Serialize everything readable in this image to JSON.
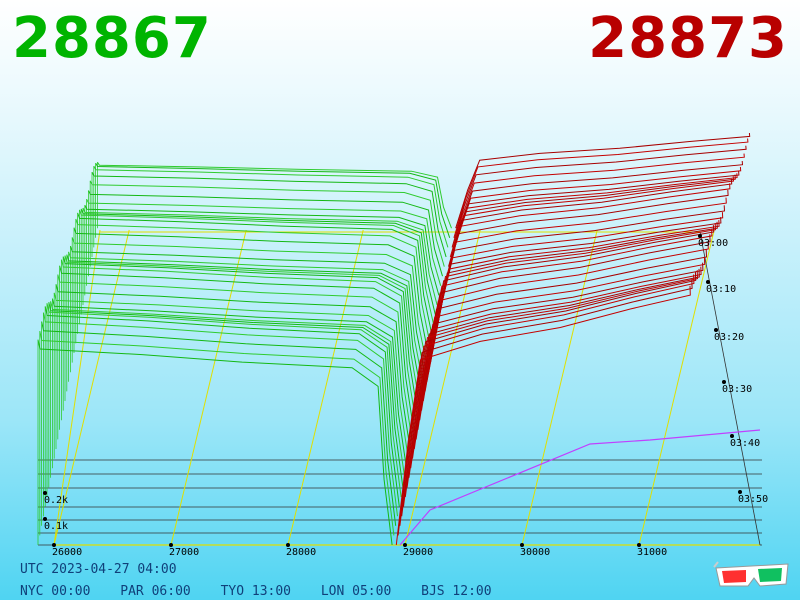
{
  "header": {
    "bid_price": "28867",
    "ask_price": "28873",
    "bid_color": "#00b400",
    "ask_color": "#b80000"
  },
  "footer": {
    "utc": "UTC 2023-04-27 04:00",
    "nyc": "NYC 00:00",
    "par": "PAR 06:00",
    "tyo": "TYO 13:00",
    "lon": "LON 05:00",
    "bjs": "BJS 12:00"
  },
  "glasses_icon": "3d-glasses-icon",
  "chart_data": {
    "type": "area",
    "x_axis": {
      "ticks": [
        26000,
        27000,
        28000,
        29000,
        30000,
        31000
      ],
      "tick_labels": [
        "26000",
        "27000",
        "28000",
        "29000",
        "30000",
        "31000"
      ],
      "range": [
        25950,
        32000
      ]
    },
    "y_axis": {
      "tick_labels": [
        "0.1k",
        "0.2k"
      ],
      "ticks": [
        100,
        200
      ]
    },
    "time_axis": {
      "tick_labels": [
        "03:00",
        "03:10",
        "03:20",
        "03:30",
        "03:40",
        "03:50"
      ]
    },
    "current": {
      "bid": 28867,
      "ask": 28873
    },
    "colors": {
      "bid": "#00a000",
      "ask": "#b00000",
      "grid": "#e0e000",
      "front_ask": "#c040ff"
    }
  }
}
